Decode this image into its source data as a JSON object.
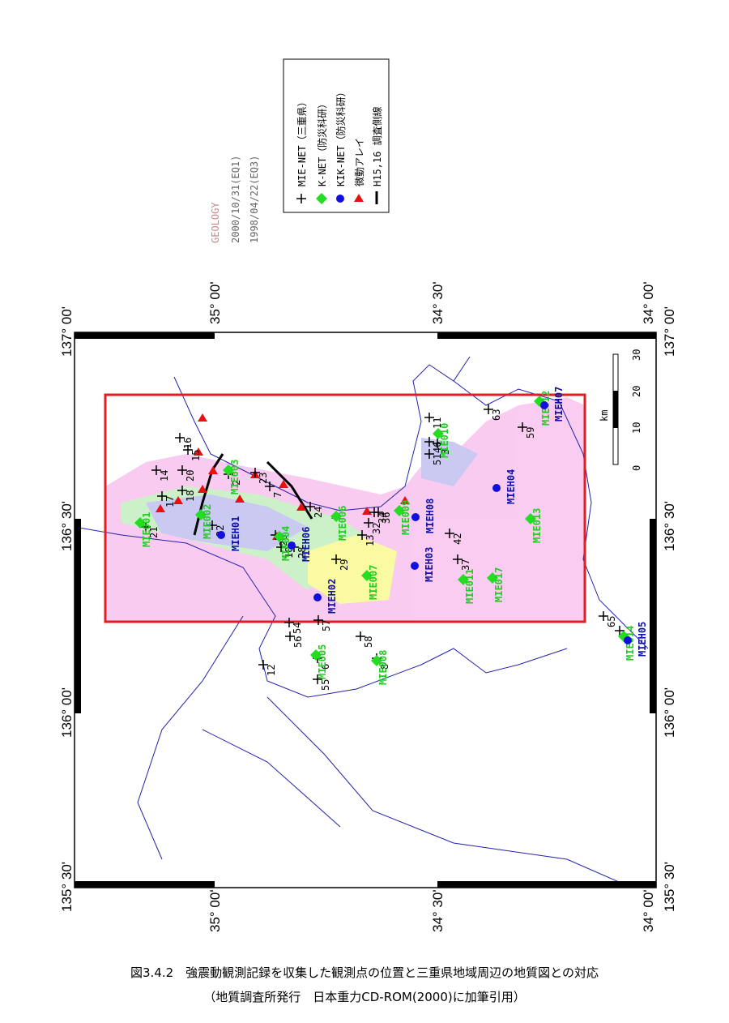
{
  "header": {
    "lines": [
      "GEOLOGY",
      "2000/10/31(EQ1)",
      "1998/04/22(EQ3)"
    ]
  },
  "legend": {
    "items": [
      "MIE-NET（三重県）",
      "K-NET（防災科研）",
      "KIK-NET（防災科研）",
      "微動アレイ",
      "H15,16 調査側線"
    ]
  },
  "frame": {
    "longitudes": [
      "137° 00'",
      "136° 30'",
      "136° 00'",
      "135° 30'"
    ],
    "latitudes": [
      "35° 00'",
      "34° 30'",
      "34° 00'"
    ]
  },
  "scale": {
    "ticks": [
      0,
      10,
      20,
      30
    ],
    "unit": "km"
  },
  "mie_net": [
    "21",
    "17",
    "14",
    "18",
    "20",
    "16",
    "15",
    "22",
    "2",
    "23",
    "7",
    "26",
    "10",
    "28",
    "24",
    "13",
    "32",
    "34",
    "36",
    "29",
    "42",
    "37",
    "46",
    "51",
    "3",
    "11",
    "63",
    "59",
    "65",
    "9",
    "12",
    "56",
    "54",
    "57",
    "6",
    "55",
    "58",
    "8"
  ],
  "k_net": [
    "MIE001",
    "MIE002",
    "MIE003",
    "MIE004",
    "MIE005",
    "MIE006",
    "MIE007",
    "MIE008",
    "MIE009",
    "MIE010",
    "MIE011",
    "MIE012",
    "MIE013",
    "MIE014",
    "MIE017"
  ],
  "kik_net": [
    "MIEH01",
    "MIEH02",
    "MIEH03",
    "MIEH04",
    "MIEH05",
    "MIEH06",
    "MIEH07",
    "MIEH08"
  ],
  "caption": [
    "図3.4.2　強震動観測記録を収集した観測点の位置と三重県地域周辺の地質図との対応",
    "（地質調査所発行　日本重力CD-ROM(2000)に加筆引用）"
  ]
}
